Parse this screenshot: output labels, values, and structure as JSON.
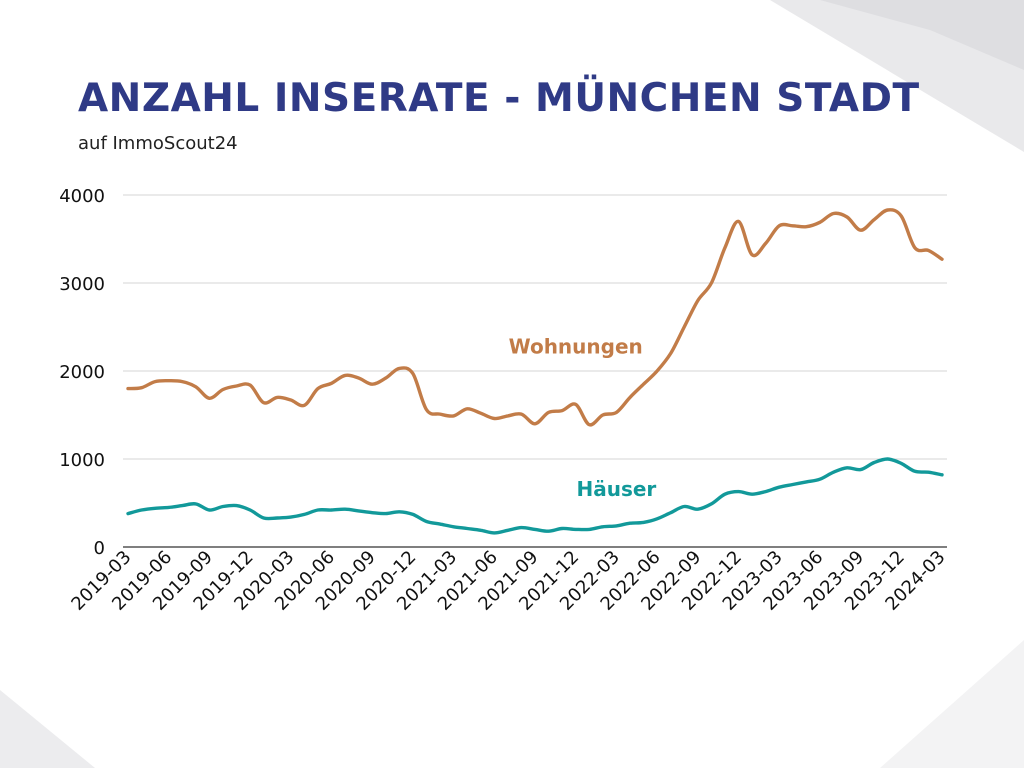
{
  "title": "ANZAHL INSERATE - MÜNCHEN STADT",
  "subtitle": "auf ImmoScout24",
  "colors": {
    "wohnungen": "#c27c48",
    "haeuser": "#12999a",
    "title": "#2f3a86",
    "grid": "#d4d4d4"
  },
  "chart_data": {
    "type": "line",
    "title": "ANZAHL INSERATE - MÜNCHEN STADT",
    "subtitle": "auf ImmoScout24",
    "xlabel": "",
    "ylabel": "",
    "ylim": [
      0,
      4000
    ],
    "yticks": [
      0,
      1000,
      2000,
      3000,
      4000
    ],
    "grid": true,
    "legend": "inline labels",
    "xticks": [
      "2019-03",
      "2019-06",
      "2019-09",
      "2019-12",
      "2020-03",
      "2020-06",
      "2020-09",
      "2020-12",
      "2021-03",
      "2021-06",
      "2021-09",
      "2021-12",
      "2022-03",
      "2022-06",
      "2022-09",
      "2022-12",
      "2023-03",
      "2023-06",
      "2023-09",
      "2023-12",
      "2024-03"
    ],
    "x": [
      "2019-03",
      "2019-04",
      "2019-05",
      "2019-06",
      "2019-07",
      "2019-08",
      "2019-09",
      "2019-10",
      "2019-11",
      "2019-12",
      "2020-01",
      "2020-02",
      "2020-03",
      "2020-04",
      "2020-05",
      "2020-06",
      "2020-07",
      "2020-08",
      "2020-09",
      "2020-10",
      "2020-11",
      "2020-12",
      "2021-01",
      "2021-02",
      "2021-03",
      "2021-04",
      "2021-05",
      "2021-06",
      "2021-07",
      "2021-08",
      "2021-09",
      "2021-10",
      "2021-11",
      "2021-12",
      "2022-01",
      "2022-02",
      "2022-03",
      "2022-04",
      "2022-05",
      "2022-06",
      "2022-07",
      "2022-08",
      "2022-09",
      "2022-10",
      "2022-11",
      "2022-12",
      "2023-01",
      "2023-02",
      "2023-03",
      "2023-04",
      "2023-05",
      "2023-06",
      "2023-07",
      "2023-08",
      "2023-09",
      "2023-10",
      "2023-11",
      "2023-12",
      "2024-01",
      "2024-02",
      "2024-03"
    ],
    "series": [
      {
        "name": "Wohnungen",
        "label_at_x": "2021-12",
        "label_at_y": 2200,
        "values": [
          1800,
          1810,
          1880,
          1890,
          1880,
          1820,
          1690,
          1790,
          1830,
          1840,
          1640,
          1700,
          1670,
          1610,
          1800,
          1860,
          1950,
          1920,
          1850,
          1920,
          2030,
          1970,
          1560,
          1510,
          1490,
          1570,
          1520,
          1460,
          1490,
          1510,
          1400,
          1530,
          1550,
          1620,
          1390,
          1500,
          1530,
          1700,
          1850,
          2000,
          2200,
          2500,
          2800,
          3000,
          3400,
          3700,
          3320,
          3450,
          3650,
          3650,
          3640,
          3690,
          3790,
          3750,
          3600,
          3720,
          3830,
          3760,
          3400,
          3370,
          3270
        ]
      },
      {
        "name": "Häuser",
        "label_at_x": "2022-03",
        "label_at_y": 580,
        "values": [
          380,
          420,
          440,
          450,
          470,
          490,
          420,
          460,
          470,
          420,
          330,
          330,
          340,
          370,
          420,
          420,
          430,
          410,
          390,
          380,
          400,
          370,
          290,
          260,
          230,
          210,
          190,
          160,
          190,
          220,
          200,
          180,
          210,
          200,
          200,
          230,
          240,
          270,
          280,
          320,
          390,
          460,
          430,
          490,
          600,
          630,
          600,
          630,
          680,
          710,
          740,
          770,
          850,
          900,
          880,
          960,
          1000,
          950,
          860,
          850,
          820
        ]
      }
    ]
  }
}
